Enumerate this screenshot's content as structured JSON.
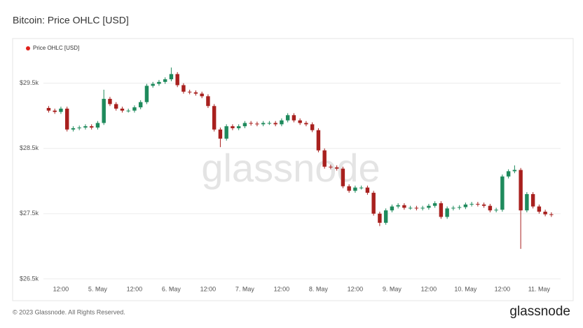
{
  "chart_data": {
    "type": "candlestick",
    "title": "Bitcoin: Price OHLC [USD]",
    "watermark": "glassnode",
    "footer": "© 2023 Glassnode. All Rights Reserved.",
    "logo": "glassnode",
    "xlim": [
      6.3,
      175
    ],
    "xticks": [
      {
        "value": 12,
        "label": "12:00"
      },
      {
        "value": 24,
        "label": "5. May"
      },
      {
        "value": 36,
        "label": "12:00"
      },
      {
        "value": 48,
        "label": "6. May"
      },
      {
        "value": 60,
        "label": "12:00"
      },
      {
        "value": 72,
        "label": "7. May"
      },
      {
        "value": 84,
        "label": "12:00"
      },
      {
        "value": 96,
        "label": "8. May"
      },
      {
        "value": 108,
        "label": "12:00"
      },
      {
        "value": 120,
        "label": "9. May"
      },
      {
        "value": 132,
        "label": "12:00"
      },
      {
        "value": 144,
        "label": "10. May"
      },
      {
        "value": 156,
        "label": "12:00"
      },
      {
        "value": 168,
        "label": "11. May"
      }
    ],
    "ylim": [
      26370,
      29830
    ],
    "yticks": [
      {
        "value": 26500,
        "label": "$26.5k"
      },
      {
        "value": 27500,
        "label": "$27.5k"
      },
      {
        "value": 28500,
        "label": "$28.5k"
      },
      {
        "value": 29500,
        "label": "$29.5k"
      }
    ],
    "grid": true,
    "legend": "top-left",
    "series": [
      {
        "name": "Price OHLC [USD]",
        "color": "#e0201b",
        "up_color": "#1e8a5c",
        "down_color": "#a8201e",
        "x": [
          8,
          10,
          12,
          14,
          16,
          18,
          20,
          22,
          24,
          26,
          28,
          30,
          32,
          34,
          36,
          38,
          40,
          42,
          44,
          46,
          48,
          50,
          52,
          54,
          56,
          58,
          60,
          62,
          64,
          66,
          68,
          70,
          72,
          74,
          76,
          78,
          80,
          82,
          84,
          86,
          88,
          90,
          92,
          94,
          96,
          98,
          100,
          102,
          104,
          106,
          108,
          110,
          112,
          114,
          116,
          118,
          120,
          122,
          124,
          126,
          128,
          130,
          132,
          134,
          136,
          138,
          140,
          142,
          144,
          146,
          148,
          150,
          152,
          154,
          156,
          158,
          160,
          162,
          164,
          166,
          168,
          170,
          172
        ],
        "open": [
          29120,
          29080,
          29060,
          29110,
          28790,
          28810,
          28820,
          28840,
          28820,
          28890,
          29260,
          29180,
          29110,
          29080,
          29080,
          29130,
          29210,
          29460,
          29490,
          29520,
          29560,
          29640,
          29470,
          29370,
          29360,
          29340,
          29300,
          29150,
          28790,
          28650,
          28840,
          28810,
          28840,
          28890,
          28880,
          28870,
          28890,
          28890,
          28870,
          28930,
          29010,
          28930,
          28890,
          28870,
          28780,
          28470,
          28220,
          28210,
          28190,
          27920,
          27850,
          27900,
          27900,
          27820,
          27500,
          27360,
          27550,
          27610,
          27630,
          27590,
          27590,
          27580,
          27590,
          27620,
          27660,
          27450,
          27580,
          27590,
          27600,
          27640,
          27650,
          27640,
          27620,
          27550,
          27560,
          28070,
          28150,
          28170,
          27550,
          27800,
          27610,
          27530,
          27490
        ],
        "high": [
          29150,
          29110,
          29140,
          29140,
          28840,
          28850,
          28870,
          28870,
          28920,
          29400,
          29290,
          29210,
          29140,
          29110,
          29160,
          29240,
          29490,
          29520,
          29550,
          29590,
          29740,
          29670,
          29500,
          29400,
          29390,
          29370,
          29330,
          29180,
          28820,
          28870,
          28870,
          28870,
          28920,
          28920,
          28910,
          28920,
          28920,
          28920,
          28960,
          29040,
          29040,
          28960,
          28920,
          28900,
          28810,
          28500,
          28250,
          28240,
          28220,
          27950,
          27930,
          27930,
          27930,
          27850,
          27530,
          27580,
          27640,
          27660,
          27660,
          27620,
          27620,
          27620,
          27650,
          27690,
          27690,
          27610,
          27620,
          27630,
          27670,
          27680,
          27680,
          27670,
          27650,
          27590,
          28100,
          28180,
          28240,
          28200,
          27830,
          27830,
          27640,
          27560,
          27520
        ],
        "low": [
          29050,
          29030,
          29030,
          28760,
          28760,
          28780,
          28790,
          28790,
          28790,
          28860,
          29150,
          29080,
          29050,
          29050,
          29050,
          29100,
          29180,
          29430,
          29460,
          29490,
          29530,
          29440,
          29340,
          29330,
          29310,
          29270,
          29120,
          28760,
          28520,
          28620,
          28780,
          28780,
          28810,
          28850,
          28840,
          28840,
          28860,
          28840,
          28840,
          28900,
          28900,
          28860,
          28840,
          28750,
          28440,
          28190,
          28180,
          28160,
          27890,
          27820,
          27820,
          27870,
          27790,
          27470,
          27310,
          27330,
          27520,
          27580,
          27560,
          27560,
          27550,
          27550,
          27560,
          27590,
          27420,
          27420,
          27550,
          27560,
          27570,
          27610,
          27610,
          27590,
          27520,
          27520,
          27530,
          28040,
          28120,
          26960,
          27520,
          27580,
          27500,
          27460,
          27450
        ],
        "close": [
          29080,
          29060,
          29110,
          28790,
          28810,
          28820,
          28840,
          28820,
          28890,
          29260,
          29180,
          29110,
          29080,
          29080,
          29130,
          29210,
          29460,
          29490,
          29520,
          29560,
          29640,
          29470,
          29370,
          29360,
          29340,
          29300,
          29150,
          28790,
          28650,
          28840,
          28810,
          28840,
          28890,
          28880,
          28870,
          28890,
          28890,
          28870,
          28930,
          29010,
          28930,
          28890,
          28870,
          28780,
          28470,
          28220,
          28210,
          28190,
          27920,
          27850,
          27900,
          27900,
          27820,
          27500,
          27360,
          27550,
          27610,
          27630,
          27590,
          27590,
          27580,
          27590,
          27620,
          27660,
          27450,
          27580,
          27590,
          27600,
          27640,
          27650,
          27640,
          27620,
          27550,
          27560,
          28070,
          28150,
          28170,
          27550,
          27800,
          27610,
          27530,
          27490,
          27480
        ]
      }
    ]
  }
}
